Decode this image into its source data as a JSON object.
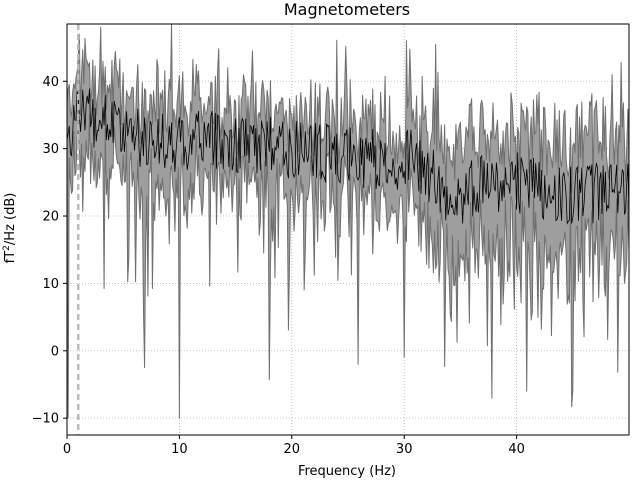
{
  "chart_data": {
    "type": "area",
    "title": "Magnetometers",
    "xlabel": "Frequency (Hz)",
    "ylabel_main": "fT",
    "ylabel_sup": "2",
    "ylabel_rest": "/Hz (dB)",
    "xlim": [
      0,
      50
    ],
    "ylim": [
      -12.5,
      48.5
    ],
    "xticks": [
      0,
      10,
      20,
      30,
      40
    ],
    "yticks": [
      -10,
      0,
      10,
      20,
      30,
      40
    ],
    "grid": true,
    "grid_style": "dotted",
    "marker_line": {
      "x": 1.0,
      "style": "dashed",
      "color": "#bbbbbb"
    },
    "colors": {
      "mean_line": "#000000",
      "band_fill": "#9e9e9e",
      "band_edge": "#6f6f6f"
    },
    "trend_anchors": {
      "x": [
        0,
        1,
        3,
        5,
        8,
        10,
        12,
        15,
        18,
        20,
        23,
        25,
        27,
        29,
        30,
        31,
        33,
        34.5,
        36,
        38,
        40,
        42,
        44,
        46,
        48,
        50
      ],
      "mean": [
        30,
        36,
        34,
        32,
        31,
        31,
        31.5,
        31,
        30.5,
        30,
        29.5,
        29,
        28.5,
        28,
        29,
        28,
        25,
        22,
        24,
        25,
        25,
        24,
        23,
        23,
        24,
        24
      ],
      "band_halfwidth": [
        6,
        6,
        7,
        7,
        7,
        7,
        6,
        6,
        6,
        6,
        6,
        6,
        6,
        6,
        6,
        7,
        8,
        9,
        9,
        9,
        9,
        9,
        9,
        9,
        9,
        9
      ]
    },
    "series": [
      {
        "name": "mean PSD",
        "x_start": 0,
        "x_end": 50,
        "n_points": 501
      },
      {
        "name": "range band",
        "x_start": 0,
        "x_end": 50,
        "n_points": 501
      }
    ],
    "spikes": [
      {
        "x": 0.1,
        "low": -10
      },
      {
        "x": 6.9,
        "low": -2.5
      },
      {
        "x": 10.0,
        "low": -10
      },
      {
        "x": 18.0,
        "low": -4.3
      },
      {
        "x": 25.9,
        "low": -2
      },
      {
        "x": 30.2,
        "high": 46
      },
      {
        "x": 32.8,
        "high": 45.5
      },
      {
        "x": 37.8,
        "low": -7
      },
      {
        "x": 40.9,
        "low": -6
      },
      {
        "x": 30.0,
        "low": -1
      },
      {
        "x": 41.8,
        "high": 38
      }
    ]
  }
}
